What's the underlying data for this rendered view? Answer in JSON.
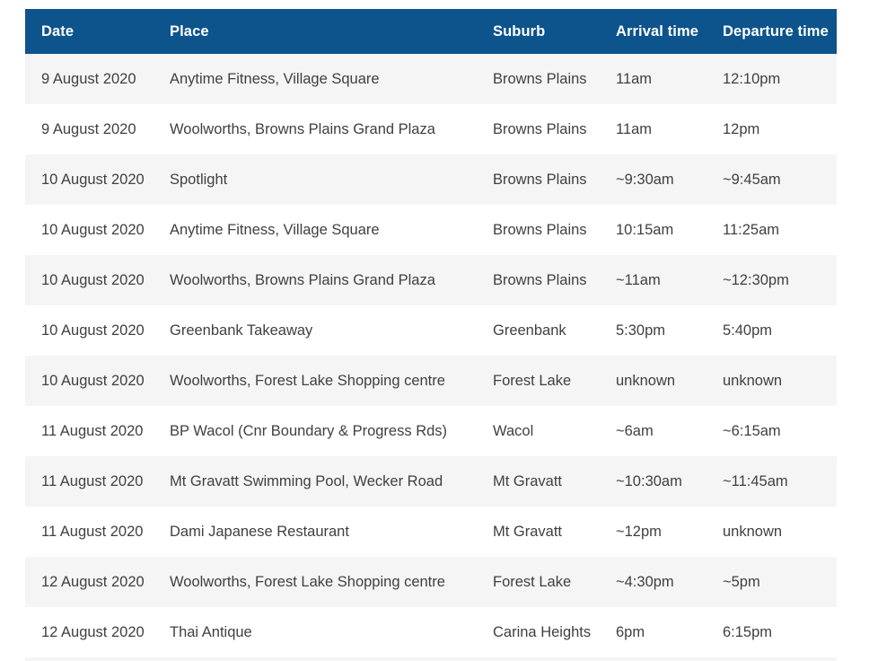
{
  "table": {
    "colors": {
      "header_bg": "#0d538c",
      "header_text": "#ffffff",
      "row_alt_bg": "#f5f5f5",
      "row_bg": "#ffffff",
      "body_text": "#3f4042"
    },
    "columns": [
      "Date",
      "Place",
      "Suburb",
      "Arrival time",
      "Departure time"
    ],
    "rows": [
      {
        "date": "9 August 2020",
        "place": "Anytime Fitness, Village Square",
        "suburb": "Browns Plains",
        "arrival": "11am",
        "departure": "12:10pm"
      },
      {
        "date": "9 August 2020",
        "place": "Woolworths, Browns Plains Grand Plaza",
        "suburb": "Browns Plains",
        "arrival": "11am",
        "departure": "12pm"
      },
      {
        "date": "10 August 2020",
        "place": "Spotlight",
        "suburb": "Browns Plains",
        "arrival": "~9:30am",
        "departure": "~9:45am"
      },
      {
        "date": "10 August 2020",
        "place": "Anytime Fitness, Village Square",
        "suburb": "Browns Plains",
        "arrival": "10:15am",
        "departure": "11:25am"
      },
      {
        "date": "10 August 2020",
        "place": "Woolworths, Browns Plains Grand Plaza",
        "suburb": "Browns Plains",
        "arrival": "~11am",
        "departure": "~12:30pm"
      },
      {
        "date": "10 August 2020",
        "place": "Greenbank Takeaway",
        "suburb": "Greenbank",
        "arrival": "5:30pm",
        "departure": "5:40pm"
      },
      {
        "date": "10 August 2020",
        "place": "Woolworths, Forest Lake Shopping centre",
        "suburb": "Forest Lake",
        "arrival": "unknown",
        "departure": "unknown"
      },
      {
        "date": "11 August 2020",
        "place": "BP Wacol (Cnr Boundary & Progress Rds)",
        "suburb": "Wacol",
        "arrival": "~6am",
        "departure": "~6:15am"
      },
      {
        "date": "11 August 2020",
        "place": "Mt Gravatt Swimming Pool, Wecker Road",
        "suburb": "Mt Gravatt",
        "arrival": "~10:30am",
        "departure": "~11:45am"
      },
      {
        "date": "11 August 2020",
        "place": "Dami Japanese Restaurant",
        "suburb": "Mt Gravatt",
        "arrival": "~12pm",
        "departure": "unknown"
      },
      {
        "date": "12 August 2020",
        "place": "Woolworths, Forest Lake Shopping centre",
        "suburb": "Forest Lake",
        "arrival": "~4:30pm",
        "departure": "~5pm"
      },
      {
        "date": "12 August 2020",
        "place": "Thai Antique",
        "suburb": "Carina Heights",
        "arrival": "6pm",
        "departure": "6:15pm"
      }
    ]
  }
}
